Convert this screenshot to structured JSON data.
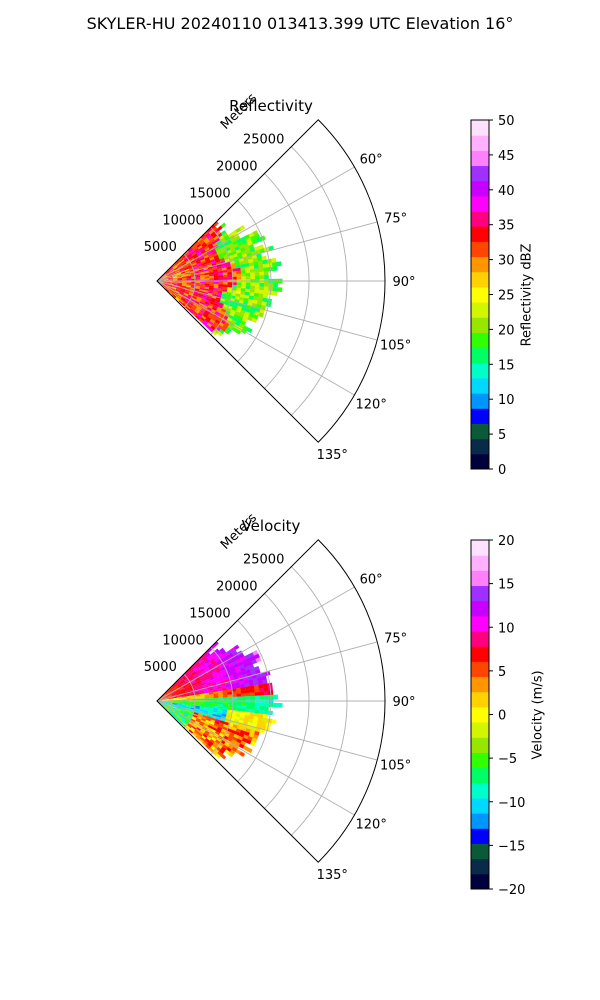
{
  "suptitle": "SKYLER-HU  20240110  013413.399 UTC Elevation 16°",
  "chart_data": [
    {
      "type": "polar_sector",
      "title": "Reflectivity",
      "range_axis_label": "Meters",
      "range_ticks": [
        5000,
        10000,
        15000,
        20000,
        25000
      ],
      "range_max": 30000,
      "angle_ticks": [
        "60°",
        "75°",
        "90°",
        "105°",
        "120°",
        "135°"
      ],
      "angle_range_deg": [
        45,
        135
      ],
      "grid": true,
      "colorbar": {
        "label": "Reflectivity dBZ",
        "ticks": [
          0,
          5,
          10,
          15,
          20,
          25,
          30,
          35,
          40,
          45,
          50
        ],
        "range": [
          0,
          50
        ],
        "colors": [
          "#00003c",
          "#0a2a4a",
          "#0a5a3a",
          "#0000ff",
          "#0096ff",
          "#00d8ff",
          "#00ffc8",
          "#00ff64",
          "#32ff00",
          "#96e600",
          "#d2f500",
          "#ffff00",
          "#ffd200",
          "#ff9600",
          "#ff4600",
          "#ff0000",
          "#ff0080",
          "#ff00ff",
          "#c800ff",
          "#a030ff",
          "#ff80ff",
          "#ffb0ff",
          "#ffe0ff"
        ]
      },
      "data_summary": "Echo extends to about 15000 m; strong 30-38 dBZ within ~10000 m, 18-24 dBZ beyond"
    },
    {
      "type": "polar_sector",
      "title": "Velocity",
      "range_axis_label": "Meters",
      "range_ticks": [
        5000,
        10000,
        15000,
        20000,
        25000
      ],
      "range_max": 30000,
      "angle_ticks": [
        "60°",
        "75°",
        "90°",
        "105°",
        "120°",
        "135°"
      ],
      "angle_range_deg": [
        45,
        135
      ],
      "grid": true,
      "colorbar": {
        "label": "Velocity (m/s)",
        "ticks": [
          -20,
          -15,
          -10,
          -5,
          0,
          5,
          10,
          15,
          20
        ],
        "range": [
          -20,
          20
        ],
        "colors": [
          "#00003c",
          "#0a2a4a",
          "#0a5a3a",
          "#0000ff",
          "#0096ff",
          "#00d8ff",
          "#00ffc8",
          "#00ff64",
          "#32ff00",
          "#96e600",
          "#d2f500",
          "#ffff00",
          "#ffd200",
          "#ff9600",
          "#ff4600",
          "#ff0000",
          "#ff0080",
          "#ff00ff",
          "#c800ff",
          "#a030ff",
          "#ff80ff",
          "#ffb0ff",
          "#ffe0ff"
        ]
      },
      "data_summary": "Positive 5-15 m/s north of 90°, negative -10 to -15 m/s band near 95-110°, positive bands further south"
    }
  ]
}
